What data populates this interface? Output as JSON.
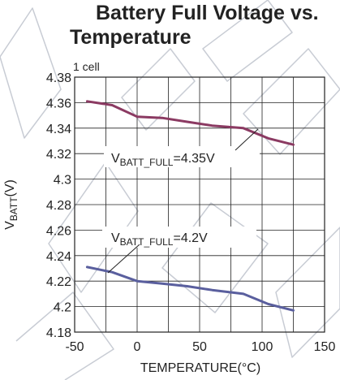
{
  "chart_data": {
    "type": "line",
    "title_lines": [
      "Battery  Full Voltage vs.",
      "Temperature"
    ],
    "note": "1 cell",
    "xlabel": "TEMPERATURE(°C)",
    "ylabel_main": "V",
    "ylabel_sub": "BATT",
    "ylabel_unit": "(V)",
    "xlim": [
      -50,
      150
    ],
    "ylim": [
      4.18,
      4.38
    ],
    "x_ticks": [
      "-50",
      "0",
      "50",
      "100",
      "150"
    ],
    "y_ticks": [
      "4.38",
      "4.36",
      "4.34",
      "4.32",
      "4.3",
      "4.28",
      "4.26",
      "4.24",
      "4.22",
      "4.2",
      "4.18"
    ],
    "grid": true,
    "series": [
      {
        "color": "#8b3a62",
        "x": [
          -40,
          -20,
          0,
          20,
          40,
          60,
          85,
          105,
          125
        ],
        "y": [
          4.361,
          4.358,
          4.349,
          4.348,
          4.345,
          4.342,
          4.34,
          4.332,
          4.327
        ]
      },
      {
        "color": "#5a5f9e",
        "x": [
          -40,
          -20,
          0,
          20,
          40,
          60,
          85,
          105,
          125
        ],
        "y": [
          4.231,
          4.227,
          4.22,
          4.218,
          4.216,
          4.213,
          4.21,
          4.202,
          4.197
        ]
      }
    ],
    "annotations": [
      {
        "main": "V",
        "sub": "BATT_FULL",
        "rest": "=4.35V"
      },
      {
        "main": "V",
        "sub": "BATT_FULL",
        "rest": "=4.2V"
      }
    ],
    "watermark_color": "#c8ccd4"
  }
}
